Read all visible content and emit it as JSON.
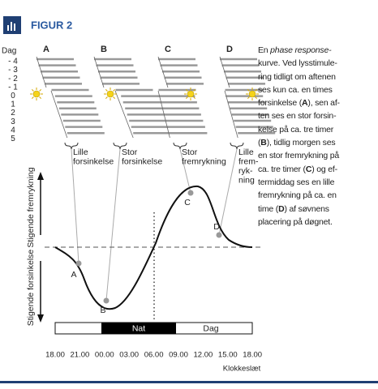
{
  "header": {
    "title": "FIGUR 2"
  },
  "panels": [
    {
      "label": "A",
      "caption": [
        "Lille",
        "forsinkelse"
      ]
    },
    {
      "label": "B",
      "caption": [
        "Stor",
        "forsinkelse"
      ]
    },
    {
      "label": "C",
      "caption": [
        "Stor",
        "fremrykning"
      ]
    },
    {
      "label": "D",
      "caption": [
        "Lille",
        "frem-",
        "ryk-",
        "ning"
      ]
    }
  ],
  "day_axis": {
    "title": "Dag",
    "labels": [
      "- 4",
      "- 3",
      "- 2",
      "- 1",
      "0",
      "1",
      "2",
      "3",
      "4",
      "5"
    ]
  },
  "curve": {
    "y_labels": [
      "Stigende fremrykning",
      "Stigende forsinkelse"
    ],
    "points": [
      "A",
      "B",
      "C",
      "D"
    ]
  },
  "timeline": {
    "night": "Nat",
    "day": "Dag",
    "ticks": [
      "18.00",
      "21.00",
      "00.00",
      "03.00",
      "06.00",
      "09.00",
      "12.00",
      "15.00",
      "18.00"
    ],
    "title": "Klokkeslæt"
  },
  "caption": [
    [
      {
        "text": "En "
      },
      {
        "text": "phase response-",
        "style": "italic"
      }
    ],
    [
      {
        "text": "kurve. Ved lysstimule-"
      }
    ],
    [
      {
        "text": "ring tidligt om aftenen"
      }
    ],
    [
      {
        "text": "ses kun ca. en times"
      }
    ],
    [
      {
        "text": "forsinkelse ("
      },
      {
        "text": "A",
        "style": "bold"
      },
      {
        "text": "), sen af-"
      }
    ],
    [
      {
        "text": "ten ses en stor forsin-"
      }
    ],
    [
      {
        "text": "kelse på ca. tre timer"
      }
    ],
    [
      {
        "text": "("
      },
      {
        "text": "B",
        "style": "bold"
      },
      {
        "text": "), tidlig morgen ses"
      }
    ],
    [
      {
        "text": "en stor fremrykning på"
      }
    ],
    [
      {
        "text": "ca. tre timer ("
      },
      {
        "text": "C",
        "style": "bold"
      },
      {
        "text": ") og ef-"
      }
    ],
    [
      {
        "text": "termiddag ses en lille"
      }
    ],
    [
      {
        "text": "fremrykning på ca. en"
      }
    ],
    [
      {
        "text": "time ("
      },
      {
        "text": "D",
        "style": "bold"
      },
      {
        "text": ") af søvnens"
      }
    ],
    [
      {
        "text": "placering på døgnet."
      }
    ]
  ]
}
